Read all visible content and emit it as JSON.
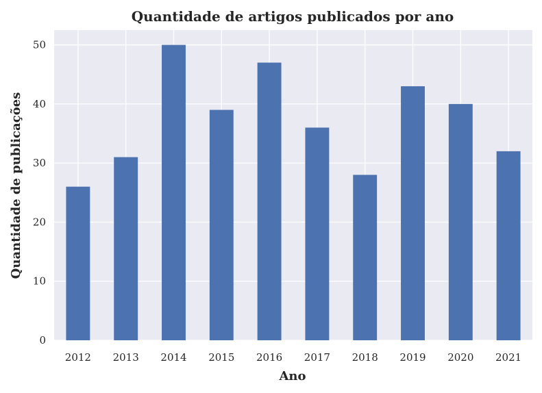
{
  "chart_data": {
    "type": "bar",
    "title": "Quantidade de artigos publicados por ano",
    "xlabel": "Ano",
    "ylabel": "Quantidade de publicações",
    "categories": [
      "2012",
      "2013",
      "2014",
      "2015",
      "2016",
      "2017",
      "2018",
      "2019",
      "2020",
      "2021"
    ],
    "values": [
      26,
      31,
      50,
      39,
      47,
      36,
      28,
      43,
      40,
      32
    ],
    "ylim": [
      0,
      52.5
    ],
    "yticks": [
      0,
      10,
      20,
      30,
      40,
      50
    ],
    "grid": true,
    "colors": {
      "bar": "#4c72b0",
      "plot_background": "#eaeaf2",
      "grid": "#ffffff",
      "text": "#262626"
    }
  }
}
